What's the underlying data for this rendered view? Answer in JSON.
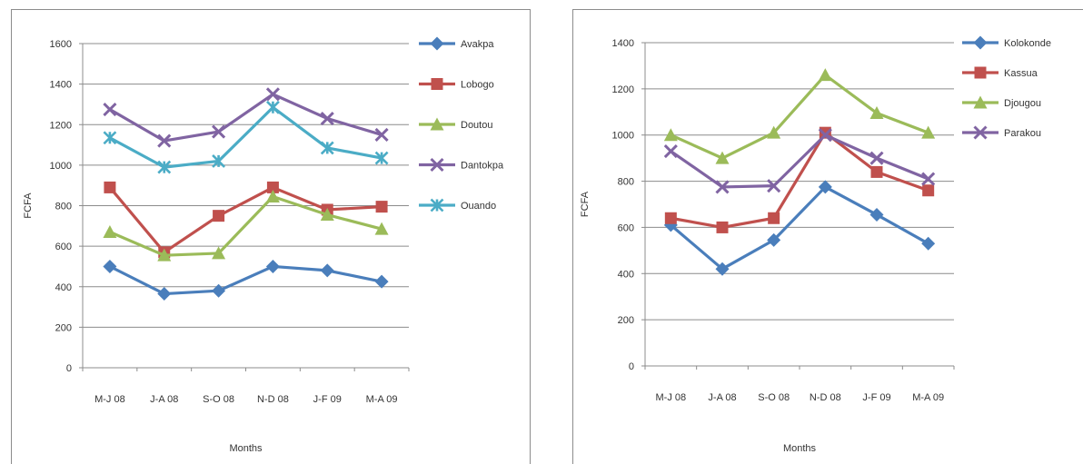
{
  "chart_data": [
    {
      "type": "line",
      "xlabel": "Months",
      "ylabel": "FCFA",
      "ylim": [
        0,
        1600
      ],
      "yticks": [
        0,
        200,
        400,
        600,
        800,
        1000,
        1200,
        1400,
        1600
      ],
      "grid": "horizontal",
      "legend": "right",
      "categories": [
        "M-J 08",
        "J-A 08",
        "S-O 08",
        "N-D 08",
        "J-F 09",
        "M-A 09"
      ],
      "series": [
        {
          "name": "Avakpa",
          "color": "#4a7ebb",
          "marker": "diamond",
          "values": [
            500,
            365,
            380,
            500,
            480,
            425
          ]
        },
        {
          "name": "Lobogo",
          "color": "#c0504d",
          "marker": "square",
          "values": [
            890,
            570,
            750,
            890,
            780,
            795
          ]
        },
        {
          "name": "Doutou",
          "color": "#9bbb59",
          "marker": "triangle",
          "values": [
            670,
            555,
            565,
            845,
            755,
            685
          ]
        },
        {
          "name": "Dantokpa",
          "color": "#8064a2",
          "marker": "x",
          "values": [
            1275,
            1120,
            1165,
            1350,
            1230,
            1150
          ]
        },
        {
          "name": "Ouando",
          "color": "#4bacc6",
          "marker": "star",
          "values": [
            1135,
            990,
            1020,
            1285,
            1085,
            1035
          ]
        }
      ]
    },
    {
      "type": "line",
      "xlabel": "Months",
      "ylabel": "FCFA",
      "ylim": [
        0,
        1400
      ],
      "yticks": [
        0,
        200,
        400,
        600,
        800,
        1000,
        1200,
        1400
      ],
      "grid": "horizontal",
      "legend": "right",
      "categories": [
        "M-J 08",
        "J-A 08",
        "S-O 08",
        "N-D 08",
        "J-F 09",
        "M-A 09"
      ],
      "series": [
        {
          "name": "Kolokonde",
          "color": "#4a7ebb",
          "marker": "diamond",
          "values": [
            610,
            420,
            545,
            775,
            655,
            530
          ]
        },
        {
          "name": "Kassua",
          "color": "#c0504d",
          "marker": "square",
          "values": [
            640,
            600,
            640,
            1010,
            840,
            760
          ]
        },
        {
          "name": "Djougou",
          "color": "#9bbb59",
          "marker": "triangle",
          "values": [
            1000,
            900,
            1010,
            1260,
            1095,
            1010
          ]
        },
        {
          "name": "Parakou",
          "color": "#8064a2",
          "marker": "x",
          "values": [
            930,
            775,
            780,
            1000,
            900,
            810
          ]
        }
      ]
    }
  ]
}
